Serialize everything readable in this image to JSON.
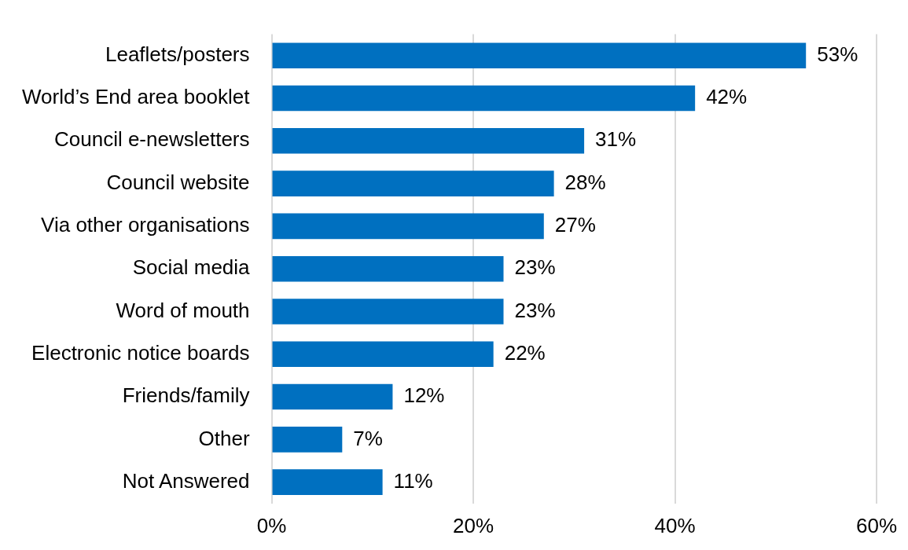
{
  "chart_data": {
    "type": "bar",
    "orientation": "horizontal",
    "categories": [
      "Leaflets/posters",
      "World’s End area booklet",
      "Council e-newsletters",
      "Council website",
      "Via other organisations",
      "Social media",
      "Word of mouth",
      "Electronic notice boards",
      "Friends/family",
      "Other",
      "Not Answered"
    ],
    "values": [
      53,
      42,
      31,
      28,
      27,
      23,
      23,
      22,
      12,
      7,
      11
    ],
    "value_labels": [
      "53%",
      "42%",
      "31%",
      "28%",
      "27%",
      "23%",
      "23%",
      "22%",
      "12%",
      "7%",
      "11%"
    ],
    "color": "#0070c0",
    "xlim": [
      0,
      60
    ],
    "xticks": [
      {
        "value": 0,
        "label": "0%"
      },
      {
        "value": 20,
        "label": "20%"
      },
      {
        "value": 40,
        "label": "40%"
      },
      {
        "value": 60,
        "label": "60%"
      }
    ],
    "grid": "x",
    "legend": false
  }
}
